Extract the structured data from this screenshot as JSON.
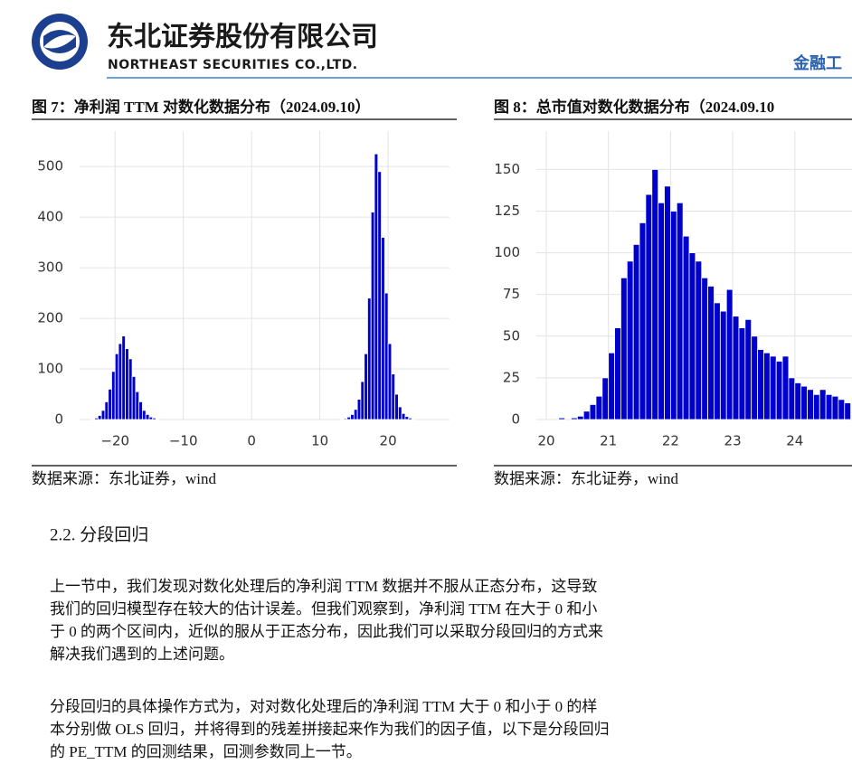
{
  "header": {
    "company_cn": "东北证券股份有限公司",
    "company_en": "NORTHEAST SECURITIES CO.,LTD.",
    "right_text": "金融工"
  },
  "chart_data": [
    {
      "type": "histogram",
      "title": "图 7：净利润 TTM 对数化数据分布（2024.09.10）",
      "color": "#0000cc",
      "grid": true,
      "xlim": [
        -25.2,
        29
      ],
      "ylim": [
        0,
        570
      ],
      "xticks": [
        {
          "value": -20,
          "label": "−20"
        },
        {
          "value": -10,
          "label": "−10"
        },
        0,
        10,
        20
      ],
      "yticks": [
        0,
        100,
        200,
        300,
        400,
        500
      ],
      "bins": [
        -24,
        -23.5,
        -23,
        -22.5,
        -22,
        -21.5,
        -21,
        -20.5,
        -20,
        -19.5,
        -19,
        -18.5,
        -18,
        -17.5,
        -17,
        -16.5,
        -16,
        -15.5,
        -15,
        -14.5,
        -14,
        -13.5,
        -13,
        -12.5,
        -12,
        -11.5,
        -11,
        -10.5,
        -10,
        -9.5,
        -9,
        -8.5,
        -8,
        -7.5,
        -7,
        -6.5,
        -6,
        -5.5,
        -5,
        -4.5,
        -4,
        -3.5,
        -3,
        -2.5,
        -2,
        -1.5,
        -1,
        -0.5,
        0,
        0.5,
        1,
        1.5,
        2,
        2.5,
        3,
        3.5,
        4,
        4.5,
        5,
        5.5,
        6,
        6.5,
        7,
        7.5,
        8,
        8.5,
        9,
        9.5,
        10,
        10.5,
        11,
        11.5,
        12,
        12.5,
        13,
        13.5,
        14,
        14.5,
        15,
        15.5,
        16,
        16.5,
        17,
        17.5,
        18,
        18.5,
        19,
        19.5,
        20,
        20.5,
        21,
        21.5,
        22,
        22.5,
        23,
        23.5,
        24,
        24.5,
        25,
        25.5,
        26
      ],
      "values": [
        0,
        1,
        3,
        8,
        18,
        35,
        60,
        95,
        130,
        150,
        165,
        140,
        120,
        85,
        55,
        35,
        18,
        10,
        5,
        3,
        1,
        0,
        0,
        0,
        0,
        0,
        0,
        0,
        0,
        0,
        0,
        0,
        0,
        0,
        0,
        0,
        0,
        0,
        0,
        0,
        0,
        0,
        0,
        0,
        0,
        0,
        0,
        0,
        0,
        0,
        0,
        0,
        0,
        0,
        0,
        0,
        0,
        0,
        0,
        0,
        0,
        0,
        0,
        0,
        0,
        0,
        0,
        0,
        0,
        0,
        0,
        0,
        0,
        0,
        1,
        2,
        5,
        10,
        20,
        40,
        75,
        130,
        240,
        410,
        525,
        490,
        360,
        250,
        150,
        90,
        50,
        25,
        12,
        6,
        3,
        1,
        0,
        0,
        0,
        0
      ]
    },
    {
      "type": "histogram",
      "title": "图 8：总市值对数化数据分布（2024.09.10",
      "color": "#0000cc",
      "grid": true,
      "xlim": [
        19.84,
        24.92
      ],
      "ylim": [
        0,
        173
      ],
      "xticks": [
        20,
        21,
        22,
        23,
        24
      ],
      "yticks": [
        0,
        25,
        50,
        75,
        100,
        125,
        150
      ],
      "bins": [
        20.0,
        20.1,
        20.2,
        20.3,
        20.4,
        20.5,
        20.6,
        20.7,
        20.8,
        20.9,
        21.0,
        21.1,
        21.2,
        21.3,
        21.4,
        21.5,
        21.6,
        21.7,
        21.8,
        21.9,
        22.0,
        22.1,
        22.2,
        22.3,
        22.4,
        22.5,
        22.6,
        22.7,
        22.8,
        22.9,
        23.0,
        23.1,
        23.2,
        23.3,
        23.4,
        23.5,
        23.6,
        23.7,
        23.8,
        23.9,
        24.0,
        24.1,
        24.2,
        24.3,
        24.4,
        24.5,
        24.6,
        24.7,
        24.8,
        24.9
      ],
      "values": [
        0,
        0,
        1,
        0,
        1,
        2,
        5,
        9,
        14,
        25,
        40,
        55,
        85,
        95,
        105,
        118,
        135,
        150,
        130,
        140,
        125,
        130,
        110,
        100,
        95,
        85,
        80,
        70,
        65,
        78,
        62,
        55,
        60,
        50,
        42,
        40,
        38,
        35,
        38,
        25,
        22,
        20,
        18,
        15,
        18,
        15,
        14,
        12,
        10
      ]
    }
  ],
  "sources": [
    "数据来源：东北证券，wind",
    "数据来源：东北证券，wind"
  ],
  "section": {
    "heading": "2.2.   分段回归",
    "paragraphs": [
      [
        "上一节中，我们发现对数化处理后的净利润 TTM 数据并不服从正态分布，这导致",
        "我们的回归模型存在较大的估计误差。但我们观察到，净利润 TTM 在大于 0 和小",
        "于 0 的两个区间内，近似的服从于正态分布，因此我们可以采取分段回归的方式来",
        "解决我们遇到的上述问题。"
      ],
      [
        "分段回归的具体操作方式为，对对数化处理后的净利润 TTM 大于 0 和小于 0 的样",
        "本分别做 OLS 回归，并将得到的残差拼接起来作为我们的因子值，以下是分段回归",
        "的 PE_TTM 的回测结果，回测参数同上一节。"
      ]
    ]
  }
}
